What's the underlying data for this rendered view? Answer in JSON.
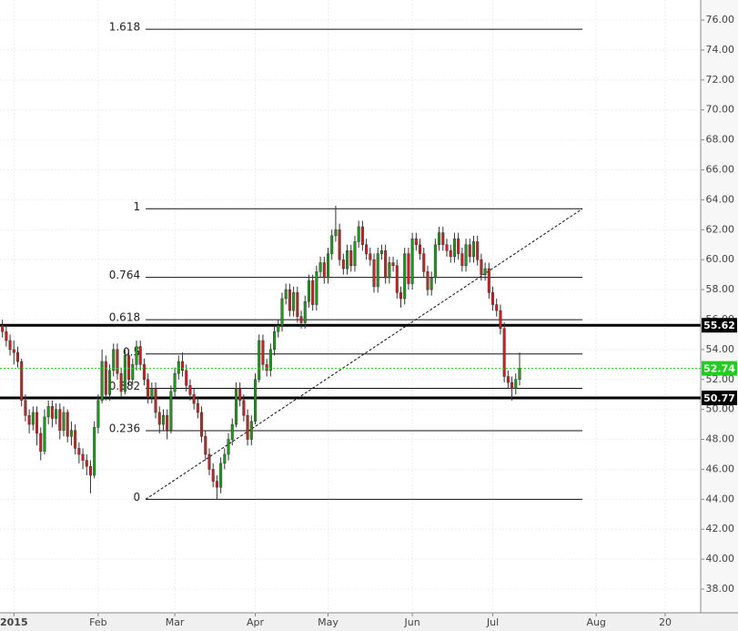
{
  "chart_data": {
    "type": "candlestick",
    "colors": {
      "up": "#1f9a1f",
      "down": "#cc2222",
      "last_price": "#22cc22"
    },
    "grid": true,
    "xlim": [
      -5.63,
      177.27
    ],
    "ylim": [
      36.42,
      77.34
    ],
    "xticks": [
      {
        "value": -2,
        "label": "2015"
      },
      {
        "value": 20,
        "label": "Feb"
      },
      {
        "value": 40,
        "label": "Mar"
      },
      {
        "value": 61,
        "label": "Apr"
      },
      {
        "value": 80,
        "label": "May"
      },
      {
        "value": 102,
        "label": "Jun"
      },
      {
        "value": 123,
        "label": "Jul"
      },
      {
        "value": 150,
        "label": "Aug"
      },
      {
        "value": 168,
        "label": "20"
      }
    ],
    "yticks": [
      {
        "value": 38,
        "label": "38.00"
      },
      {
        "value": 40,
        "label": "40.00"
      },
      {
        "value": 42,
        "label": "42.00"
      },
      {
        "value": 44,
        "label": "44.00"
      },
      {
        "value": 46,
        "label": "46.00"
      },
      {
        "value": 48,
        "label": "48.00"
      },
      {
        "value": 50,
        "label": "50.00"
      },
      {
        "value": 52,
        "label": "52.00"
      },
      {
        "value": 54,
        "label": "54.00"
      },
      {
        "value": 56,
        "label": "56.00"
      },
      {
        "value": 58,
        "label": "58.00"
      },
      {
        "value": 60,
        "label": "60.00"
      },
      {
        "value": 62,
        "label": "62.00"
      },
      {
        "value": 64,
        "label": "64.00"
      },
      {
        "value": 66,
        "label": "66.00"
      },
      {
        "value": 68,
        "label": "68.00"
      },
      {
        "value": 70,
        "label": "70.00"
      },
      {
        "value": 72,
        "label": "72.00"
      },
      {
        "value": 74,
        "label": "74.00"
      },
      {
        "value": 76,
        "label": "76.00"
      }
    ],
    "x": [
      -5,
      -4,
      -3,
      -2,
      -1,
      0,
      1,
      2,
      3,
      4,
      5,
      6,
      7,
      8,
      9,
      10,
      11,
      12,
      13,
      14,
      15,
      16,
      17,
      18,
      19,
      20,
      21,
      22,
      23,
      24,
      25,
      26,
      27,
      28,
      29,
      30,
      31,
      32,
      33,
      34,
      35,
      36,
      37,
      38,
      39,
      40,
      41,
      42,
      43,
      44,
      45,
      46,
      47,
      48,
      49,
      50,
      51,
      52,
      53,
      54,
      55,
      56,
      57,
      58,
      59,
      60,
      61,
      62,
      63,
      64,
      65,
      66,
      67,
      68,
      69,
      70,
      71,
      72,
      73,
      74,
      75,
      76,
      77,
      78,
      79,
      80,
      81,
      82,
      83,
      84,
      85,
      86,
      87,
      88,
      89,
      90,
      91,
      92,
      93,
      94,
      95,
      96,
      97,
      98,
      99,
      100,
      101,
      102,
      103,
      104,
      105,
      106,
      107,
      108,
      109,
      110,
      111,
      112,
      113,
      114,
      115,
      116,
      117,
      118,
      119,
      120,
      121,
      122,
      123,
      124,
      125,
      126,
      127,
      128,
      129,
      130
    ],
    "open": [
      55.6,
      55.2,
      54.6,
      54.0,
      53.8,
      53.2,
      50.6,
      49.6,
      49.0,
      49.8,
      48.4,
      47.2,
      49.5,
      50.2,
      49.4,
      50.0,
      48.6,
      49.8,
      48.2,
      48.6,
      47.4,
      47.0,
      46.6,
      46.2,
      45.6,
      48.8,
      50.6,
      53.2,
      51.0,
      52.6,
      54.0,
      52.4,
      51.2,
      53.6,
      52.0,
      53.0,
      54.2,
      53.0,
      52.0,
      50.8,
      51.4,
      49.8,
      49.0,
      49.6,
      48.6,
      51.2,
      52.4,
      53.2,
      52.6,
      51.6,
      51.0,
      50.4,
      49.8,
      48.2,
      47.0,
      46.0,
      45.2,
      44.8,
      46.4,
      47.0,
      48.0,
      49.0,
      51.4,
      50.6,
      49.6,
      48.0,
      49.2,
      52.0,
      54.6,
      53.0,
      52.6,
      54.0,
      55.2,
      55.6,
      57.4,
      58.0,
      56.6,
      57.8,
      56.2,
      55.8,
      57.2,
      58.6,
      57.0,
      59.2,
      59.8,
      58.8,
      60.4,
      61.6,
      62.0,
      60.0,
      59.4,
      60.6,
      59.6,
      61.2,
      62.2,
      61.0,
      60.4,
      60.0,
      58.2,
      60.4,
      60.6,
      58.8,
      59.8,
      59.6,
      57.8,
      57.4,
      60.4,
      58.4,
      61.4,
      61.0,
      60.4,
      59.2,
      58.0,
      58.8,
      61.0,
      61.8,
      61.0,
      60.6,
      60.2,
      61.4,
      60.4,
      59.6,
      61.0,
      60.2,
      61.2,
      60.0,
      59.0,
      59.4,
      57.8,
      57.0,
      56.6,
      55.4,
      52.2,
      51.8,
      51.4,
      52.0
    ],
    "high": [
      56.0,
      55.6,
      55.0,
      54.6,
      54.2,
      53.4,
      51.0,
      50.0,
      50.2,
      50.2,
      48.8,
      50.0,
      50.6,
      50.6,
      50.4,
      50.4,
      50.2,
      50.0,
      49.2,
      49.0,
      47.8,
      47.4,
      47.0,
      46.6,
      49.2,
      51.0,
      54.0,
      53.6,
      53.0,
      54.4,
      54.4,
      52.8,
      54.0,
      54.0,
      53.4,
      54.6,
      54.6,
      53.4,
      52.4,
      51.8,
      51.8,
      50.2,
      50.0,
      50.0,
      51.6,
      52.8,
      53.6,
      53.8,
      53.0,
      52.0,
      51.4,
      50.8,
      50.2,
      48.6,
      47.4,
      46.4,
      45.6,
      46.8,
      47.4,
      48.4,
      49.4,
      51.8,
      51.8,
      51.0,
      50.0,
      49.6,
      52.4,
      55.0,
      55.0,
      53.4,
      54.4,
      55.6,
      56.0,
      57.8,
      58.4,
      58.4,
      58.2,
      58.2,
      56.6,
      57.6,
      59.0,
      59.0,
      59.6,
      60.2,
      60.2,
      60.8,
      62.0,
      63.6,
      62.4,
      60.4,
      61.0,
      61.0,
      61.6,
      62.6,
      62.6,
      61.4,
      60.8,
      60.4,
      60.8,
      61.0,
      61.0,
      60.2,
      60.2,
      60.0,
      58.2,
      60.8,
      60.8,
      61.8,
      61.8,
      61.4,
      60.8,
      59.6,
      59.2,
      61.4,
      62.2,
      62.2,
      61.4,
      61.0,
      61.8,
      61.8,
      60.8,
      61.4,
      61.4,
      61.6,
      61.6,
      60.4,
      59.8,
      59.8,
      58.2,
      57.4,
      57.0,
      55.8,
      52.6,
      52.2,
      52.4,
      53.8
    ],
    "low": [
      54.8,
      54.2,
      53.6,
      53.0,
      52.8,
      50.2,
      49.2,
      48.4,
      48.6,
      47.6,
      46.6,
      47.0,
      49.0,
      48.8,
      49.0,
      48.0,
      48.2,
      47.8,
      47.6,
      47.0,
      46.4,
      46.0,
      45.6,
      44.4,
      45.4,
      48.4,
      50.4,
      50.6,
      50.6,
      52.2,
      52.0,
      50.8,
      51.0,
      51.6,
      51.6,
      52.6,
      52.6,
      51.6,
      50.4,
      50.4,
      49.4,
      48.4,
      48.6,
      48.0,
      48.4,
      50.8,
      52.0,
      52.2,
      51.2,
      50.6,
      50.0,
      49.4,
      47.8,
      46.6,
      45.6,
      44.8,
      44.0,
      44.4,
      46.0,
      46.6,
      47.6,
      48.8,
      50.2,
      49.2,
      47.6,
      47.6,
      49.0,
      51.8,
      52.6,
      52.2,
      52.2,
      53.6,
      54.8,
      55.2,
      57.0,
      56.2,
      56.2,
      55.8,
      55.4,
      55.4,
      56.8,
      56.6,
      56.6,
      58.8,
      58.4,
      58.4,
      60.0,
      61.2,
      59.6,
      59.0,
      59.0,
      59.2,
      59.2,
      60.8,
      60.6,
      60.0,
      59.6,
      57.8,
      57.8,
      60.0,
      58.4,
      58.4,
      59.2,
      57.4,
      56.8,
      57.0,
      58.0,
      58.0,
      60.6,
      60.0,
      58.8,
      57.6,
      57.6,
      58.4,
      60.6,
      60.6,
      60.2,
      59.8,
      59.8,
      60.0,
      59.2,
      59.2,
      59.8,
      59.8,
      59.6,
      58.6,
      58.6,
      57.4,
      56.6,
      56.2,
      55.0,
      51.8,
      51.4,
      50.6,
      51.0,
      51.6
    ],
    "close": [
      55.2,
      54.6,
      54.0,
      53.8,
      53.2,
      50.6,
      49.6,
      49.0,
      49.8,
      48.4,
      47.2,
      49.5,
      50.2,
      49.4,
      50.0,
      48.6,
      49.8,
      48.2,
      48.6,
      47.4,
      47.0,
      46.6,
      46.2,
      45.6,
      48.8,
      50.6,
      53.2,
      51.0,
      52.6,
      54.0,
      52.4,
      51.2,
      53.6,
      52.0,
      53.0,
      54.2,
      53.0,
      52.0,
      50.8,
      51.4,
      49.8,
      49.0,
      49.6,
      48.6,
      51.2,
      52.4,
      53.2,
      52.6,
      51.6,
      51.0,
      50.4,
      49.8,
      48.2,
      47.0,
      46.0,
      45.2,
      44.8,
      46.4,
      47.0,
      48.0,
      49.0,
      51.4,
      50.6,
      49.6,
      48.0,
      49.2,
      52.0,
      54.6,
      53.0,
      52.6,
      54.0,
      55.2,
      55.6,
      57.4,
      58.0,
      56.6,
      57.8,
      56.2,
      55.8,
      57.2,
      58.6,
      57.0,
      59.2,
      59.8,
      58.8,
      60.4,
      61.6,
      62.0,
      60.0,
      59.4,
      60.6,
      59.6,
      61.2,
      62.2,
      61.0,
      60.4,
      60.0,
      58.2,
      60.4,
      60.6,
      58.8,
      59.8,
      59.6,
      57.8,
      57.4,
      60.4,
      58.4,
      61.4,
      61.0,
      60.4,
      59.2,
      58.0,
      58.8,
      61.0,
      61.8,
      61.0,
      60.6,
      60.2,
      61.4,
      60.4,
      59.6,
      61.0,
      60.2,
      61.2,
      60.0,
      59.0,
      59.4,
      57.8,
      57.0,
      56.6,
      55.4,
      52.2,
      51.8,
      51.4,
      52.0,
      52.74
    ],
    "trend_line": {
      "x": [
        32.4,
        146.4
      ],
      "y": [
        44.0,
        63.4
      ]
    },
    "fibonacci": [
      {
        "label": "0",
        "value": 44.0
      },
      {
        "label": "0.236",
        "value": 48.58
      },
      {
        "label": "0.382",
        "value": 51.41
      },
      {
        "label": "0.5",
        "value": 53.7
      },
      {
        "label": "0.618",
        "value": 55.99
      },
      {
        "label": "0.764",
        "value": 58.82
      },
      {
        "label": "1",
        "value": 63.4
      },
      {
        "label": "1.618",
        "value": 75.39
      }
    ],
    "levels": [
      {
        "value": 55.62,
        "label": "55.62"
      },
      {
        "value": 50.77,
        "label": "50.77"
      }
    ],
    "last_price": {
      "value": 52.74,
      "label": "52.74"
    }
  }
}
